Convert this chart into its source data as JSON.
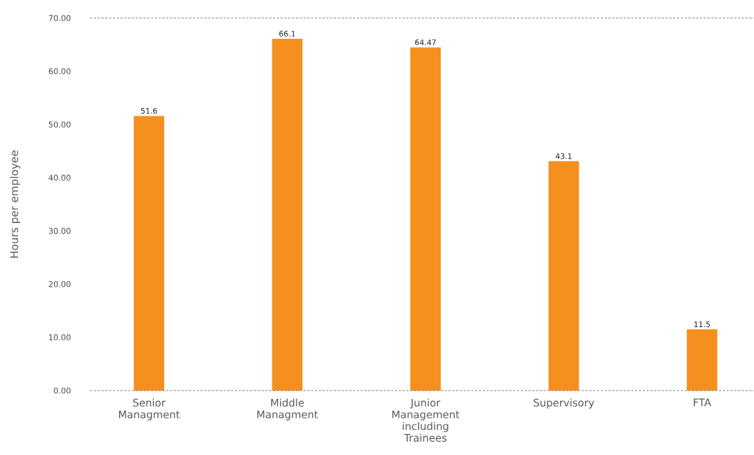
{
  "chart_data": {
    "type": "bar",
    "ylabel": "Hours per employee",
    "categories": [
      "Senior Managment",
      "Middle Managment",
      "Junior Management including Trainees",
      "Supervisory",
      "FTA"
    ],
    "values": [
      51.6,
      66.1,
      64.47,
      43.1,
      11.5
    ],
    "color": "#f5901f",
    "ylim": [
      0,
      70
    ],
    "yticks": [
      {
        "value": 0,
        "label": "0.00"
      },
      {
        "value": 10,
        "label": "10.00"
      },
      {
        "value": 20,
        "label": "20.00"
      },
      {
        "value": 30,
        "label": "30.00"
      },
      {
        "value": 40,
        "label": "40.00"
      },
      {
        "value": 50,
        "label": "50.00"
      },
      {
        "value": 60,
        "label": "60.00"
      },
      {
        "value": 70,
        "label": "70.00"
      }
    ],
    "data_labels": true,
    "grid": false,
    "ref_lines": [
      {
        "axis": "y",
        "value": 0,
        "color": "#777777",
        "line_style": "dashed"
      },
      {
        "axis": "y",
        "value": 70,
        "color": "#777777",
        "line_style": "dashed"
      }
    ]
  }
}
